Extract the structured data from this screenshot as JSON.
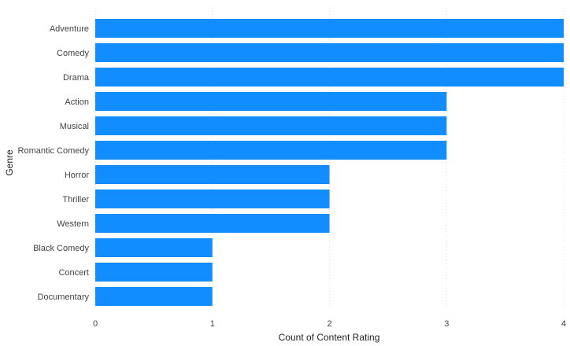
{
  "chart_data": {
    "type": "bar",
    "orientation": "horizontal",
    "categories": [
      "Adventure",
      "Comedy",
      "Drama",
      "Action",
      "Musical",
      "Romantic Comedy",
      "Horror",
      "Thriller",
      "Western",
      "Black Comedy",
      "Concert",
      "Documentary"
    ],
    "values": [
      4,
      4,
      4,
      3,
      3,
      3,
      2,
      2,
      2,
      1,
      1,
      1
    ],
    "title": "",
    "xlabel": "Count of Content Rating",
    "ylabel": "Genre",
    "xlim": [
      0,
      4
    ],
    "x_ticks": [
      "0",
      "1",
      "2",
      "3",
      "4"
    ],
    "grid": "vertical-dotted",
    "bar_color": "#118DFF",
    "grid_color": "#d9d9d9"
  }
}
